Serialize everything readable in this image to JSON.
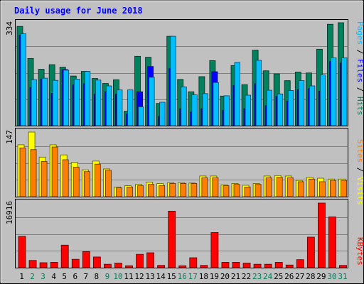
{
  "chart_data": [
    {
      "type": "bar",
      "title": "Daily usage for June 2018",
      "categories": [
        "1",
        "2",
        "3",
        "4",
        "5",
        "6",
        "7",
        "8",
        "9",
        "10",
        "11",
        "12",
        "13",
        "14",
        "15",
        "16",
        "17",
        "18",
        "19",
        "20",
        "21",
        "22",
        "23",
        "24",
        "25",
        "26",
        "27",
        "28",
        "29",
        "30",
        "31"
      ],
      "weekend_days": [
        "2",
        "3",
        "9",
        "10",
        "16",
        "17",
        "23",
        "24",
        "30",
        "31"
      ],
      "ymax_label": "334",
      "ylim": [
        0,
        334
      ],
      "series": [
        {
          "name": "Hits",
          "color": "#00805c",
          "values": [
            322,
            218,
            183,
            198,
            190,
            161,
            176,
            153,
            137,
            149,
            47,
            225,
            222,
            72,
            290,
            150,
            110,
            159,
            211,
            96,
            195,
            133,
            245,
            178,
            168,
            146,
            174,
            171,
            248,
            329,
            334
          ]
        },
        {
          "name": "Files",
          "color": "#0000ff",
          "values": [
            294,
            124,
            151,
            105,
            182,
            132,
            136,
            102,
            110,
            102,
            38,
            110,
            192,
            30,
            185,
            55,
            44,
            55,
            175,
            50,
            130,
            55,
            136,
            65,
            95,
            80,
            117,
            120,
            112,
            208,
            203
          ]
        },
        {
          "name": "Pages",
          "color": "#00bfff",
          "values": [
            298,
            149,
            154,
            147,
            180,
            151,
            176,
            148,
            129,
            116,
            116,
            61,
            157,
            76,
            290,
            126,
            100,
            104,
            140,
            97,
            205,
            99,
            212,
            115,
            103,
            114,
            146,
            129,
            165,
            220,
            220
          ]
        }
      ]
    },
    {
      "type": "bar",
      "ymax_label": "147",
      "ylim": [
        0,
        147
      ],
      "series": [
        {
          "name": "Visits",
          "color": "#ffff00",
          "values": [
            118,
            147,
            90,
            118,
            95,
            78,
            61,
            81,
            63,
            22,
            25,
            28,
            33,
            30,
            32,
            32,
            31,
            47,
            47,
            27,
            30,
            26,
            30,
            47,
            48,
            47,
            37,
            44,
            42,
            40,
            40
          ]
        },
        {
          "name": "Sites",
          "color": "#ff8000",
          "values": [
            111,
            107,
            80,
            113,
            84,
            67,
            57,
            74,
            60,
            20,
            22,
            25,
            28,
            25,
            30,
            30,
            30,
            43,
            43,
            25,
            28,
            22,
            28,
            43,
            44,
            43,
            34,
            40,
            34,
            37,
            37
          ]
        }
      ]
    },
    {
      "type": "bar",
      "ymax_label": "16916",
      "ylim": [
        0,
        16916
      ],
      "series": [
        {
          "name": "KBytes",
          "color": "#ff0000",
          "values": [
            8200,
            1900,
            1300,
            1400,
            5900,
            2200,
            4200,
            2800,
            900,
            1200,
            500,
            3500,
            3900,
            600,
            14800,
            500,
            2600,
            600,
            9200,
            1400,
            1400,
            1200,
            900,
            900,
            1400,
            700,
            2100,
            8000,
            16916,
            13300,
            600
          ]
        }
      ]
    }
  ],
  "right_labels": {
    "top": [
      {
        "text": "Pages",
        "color": "#00bfff"
      },
      {
        "text": " / ",
        "color": "#000000"
      },
      {
        "text": "Files",
        "color": "#0000ff"
      },
      {
        "text": " / ",
        "color": "#000000"
      },
      {
        "text": "Hits",
        "color": "#00805c"
      }
    ],
    "mid": [
      {
        "text": "Sites",
        "color": "#ff8000"
      },
      {
        "text": " / ",
        "color": "#000000"
      },
      {
        "text": "Visits",
        "color": "#ffff00"
      }
    ],
    "bottom": [
      {
        "text": "KBytes",
        "color": "#ff0000"
      }
    ]
  },
  "colors": {
    "background": "#c0c0c0",
    "panel": "#c0c0c0",
    "gridline": "#808080",
    "weekday_label": "#000000",
    "weekend_label": "#00805c",
    "title": "#0000ff"
  }
}
